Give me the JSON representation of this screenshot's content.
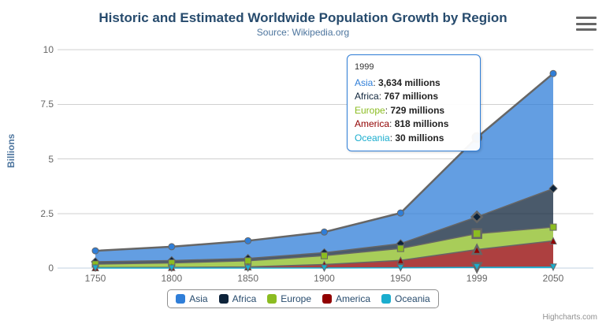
{
  "chart": {
    "title": "Historic and Estimated Worldwide Population Growth by Region",
    "subtitle": "Source: Wikipedia.org",
    "credits": "Highcharts.com"
  },
  "chart_data": {
    "type": "area",
    "stacking": "normal",
    "title": "Historic and Estimated Worldwide Population Growth by Region",
    "subtitle": "Source: Wikipedia.org",
    "categories": [
      "1750",
      "1800",
      "1850",
      "1900",
      "1950",
      "1999",
      "2050"
    ],
    "xlabel": "",
    "ylabel": "Billions",
    "unit": "millions",
    "ylim": [
      0,
      10
    ],
    "yticks": [
      0,
      2.5,
      5,
      7.5,
      10
    ],
    "ytick_labels": [
      "0",
      "2.5",
      "5",
      "7.5",
      "10"
    ],
    "grid": "horizontal",
    "legend_position": "bottom",
    "hover_index": 5,
    "series": [
      {
        "name": "Asia",
        "color": "#2f7ed8",
        "marker": "circle",
        "values": [
          502,
          635,
          809,
          947,
          1402,
          3634,
          5268
        ]
      },
      {
        "name": "Africa",
        "color": "#0d233a",
        "marker": "diamond",
        "values": [
          106,
          107,
          111,
          133,
          221,
          767,
          1766
        ]
      },
      {
        "name": "Europe",
        "color": "#8bbc21",
        "marker": "square",
        "values": [
          163,
          203,
          276,
          408,
          547,
          729,
          628
        ]
      },
      {
        "name": "America",
        "color": "#910000",
        "marker": "triangle",
        "values": [
          18,
          31,
          54,
          156,
          339,
          818,
          1201
        ]
      },
      {
        "name": "Oceania",
        "color": "#1aadce",
        "marker": "triangle-down",
        "values": [
          2,
          2,
          2,
          6,
          13,
          30,
          46
        ]
      }
    ]
  },
  "tooltip": {
    "header": "1999",
    "separator": ": ",
    "rows": [
      {
        "name": "Asia",
        "value": "3,634 millions"
      },
      {
        "name": "Africa",
        "value": "767 millions"
      },
      {
        "name": "Europe",
        "value": "729 millions"
      },
      {
        "name": "America",
        "value": "818 millions"
      },
      {
        "name": "Oceania",
        "value": "30 millions"
      }
    ]
  }
}
